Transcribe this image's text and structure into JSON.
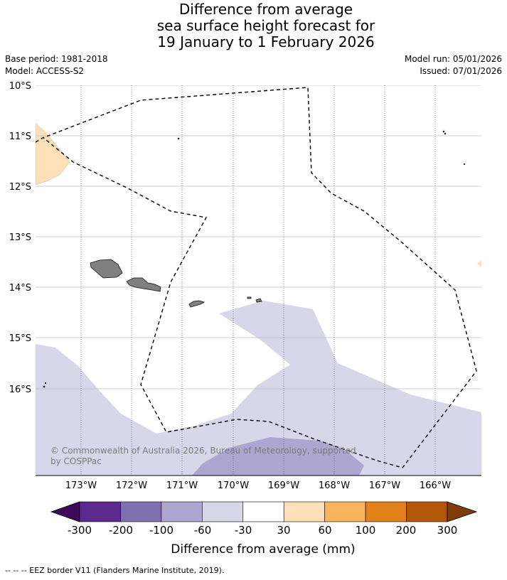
{
  "title": {
    "line1": "Difference from average",
    "line2": "sea surface height forecast for",
    "line3": "19 January to 1 February 2026"
  },
  "meta": {
    "base_period": "Base period: 1981-2018",
    "model": "Model: ACCESS-S2",
    "model_run": "Model run: 05/01/2026",
    "issued": "Issued: 07/01/2026"
  },
  "map": {
    "lat_labels": [
      "10°S",
      "11°S",
      "12°S",
      "13°S",
      "14°S",
      "15°S",
      "16°S"
    ],
    "lon_labels": [
      "173°W",
      "172°W",
      "171°W",
      "170°W",
      "169°W",
      "168°W",
      "167°W",
      "166°W"
    ],
    "copyright_line1": "© Commonwealth of Australia 2026, Bureau of Meteorology, supported",
    "copyright_line2": "by COSPPac"
  },
  "legend": {
    "tick_labels": [
      "-300",
      "-200",
      "-100",
      "-60",
      "-30",
      "30",
      "60",
      "100",
      "200",
      "300"
    ],
    "colors": [
      "#3d0a5c",
      "#5b2a8c",
      "#8170b0",
      "#ada6d1",
      "#d7d7e9",
      "#ffffff",
      "#fde0b8",
      "#fbb45e",
      "#e3821a",
      "#b25608",
      "#7f3b08"
    ],
    "label": "Difference from average (mm)"
  },
  "footer": "--  --  -- EEZ border V11 (Flanders Marine Institute, 2019)."
}
